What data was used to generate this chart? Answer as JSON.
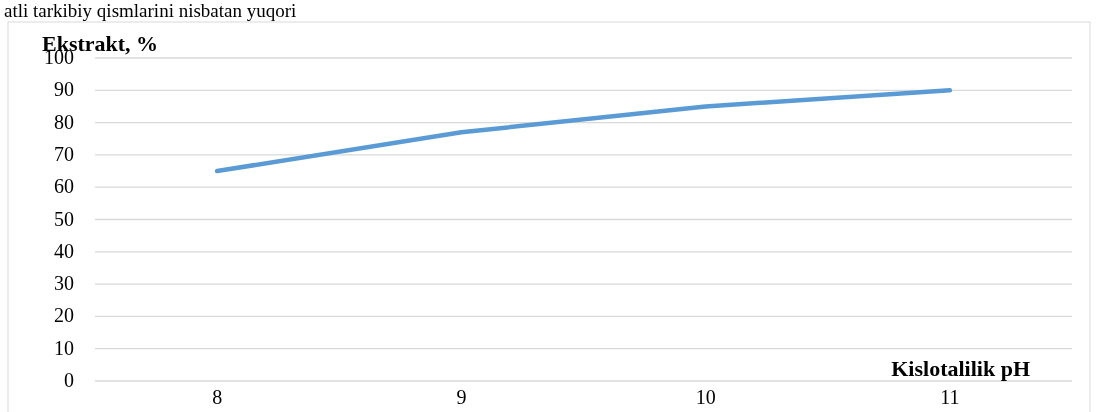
{
  "chart_data": {
    "type": "line",
    "ylabel": "Ekstrakt, %",
    "xlabel": "Kislotalilik pH",
    "annotations": [
      "atli tarkibiy qismlarini nisbatan yuqori"
    ],
    "categories": [
      "8",
      "9",
      "10",
      "11"
    ],
    "series": [
      {
        "color": "#5b9bd5",
        "values": [
          65,
          77,
          85,
          90
        ]
      }
    ],
    "ylim": [
      0,
      100
    ],
    "yticks": [
      0,
      10,
      20,
      30,
      40,
      50,
      60,
      70,
      80,
      90,
      100
    ],
    "grid": "y",
    "marker": "none",
    "line_style": "solid"
  }
}
